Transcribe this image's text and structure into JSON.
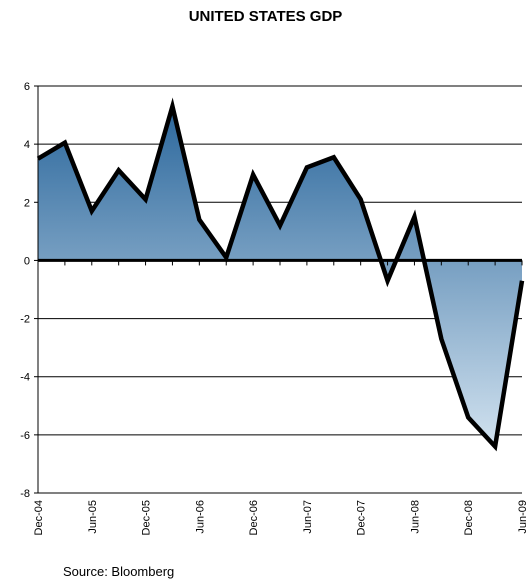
{
  "chart_data": {
    "type": "area",
    "title": "UNITED STATES GDP",
    "source": "Source: Bloomberg",
    "xlabel": "",
    "ylabel": "",
    "ylim": [
      -8,
      6
    ],
    "yticks": [
      -8,
      -6,
      -4,
      -2,
      0,
      2,
      4,
      6
    ],
    "x_tick_labels": [
      "Dec-04",
      "Jun-05",
      "Dec-05",
      "Jun-06",
      "Dec-06",
      "Jun-07",
      "Dec-07",
      "Jun-08",
      "Dec-08",
      "Jun-09"
    ],
    "grid": true,
    "legend": "none",
    "colors": {
      "line": "#000000",
      "fill_top": "#2f6a9e",
      "fill_bottom": "#d7e6f2",
      "grid": "#000000"
    },
    "series": [
      {
        "x": [
          "Dec-04",
          "Mar-05",
          "Jun-05",
          "Sep-05",
          "Dec-05",
          "Mar-06",
          "Jun-06",
          "Sep-06",
          "Dec-06",
          "Mar-07",
          "Jun-07",
          "Sep-07",
          "Dec-07",
          "Mar-08",
          "Jun-08",
          "Sep-08",
          "Dec-08",
          "Mar-09",
          "Jun-09"
        ],
        "values": [
          3.5,
          4.05,
          1.7,
          3.1,
          2.1,
          5.3,
          1.4,
          0.1,
          2.95,
          1.2,
          3.2,
          3.55,
          2.1,
          -0.7,
          1.5,
          -2.7,
          -5.4,
          -6.4,
          -0.7
        ]
      }
    ]
  }
}
